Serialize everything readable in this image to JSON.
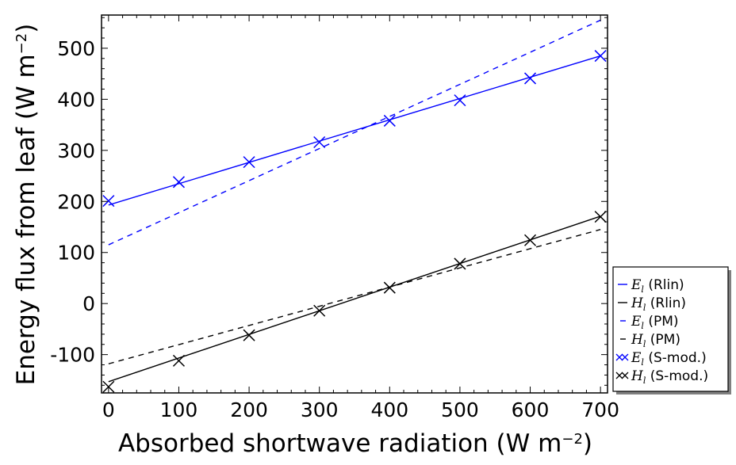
{
  "chart_data": {
    "type": "line",
    "title": "",
    "xlabel": "Absorbed shortwave radiation (W m",
    "xlabel_sup": "−2",
    "xlabel_end": ")",
    "ylabel": "Energy flux from leaf (W m",
    "ylabel_sup": "−2",
    "ylabel_end": ")",
    "xlim": [
      -10,
      710
    ],
    "ylim": [
      -175,
      565
    ],
    "x_ticks": [
      0,
      100,
      200,
      300,
      400,
      500,
      600,
      700
    ],
    "x_tick_labels": [
      "0",
      "100",
      "200",
      "300",
      "400",
      "500",
      "600",
      "700"
    ],
    "x_minor_step": 20,
    "y_ticks": [
      -100,
      0,
      100,
      200,
      300,
      400,
      500
    ],
    "y_tick_labels": [
      "-100",
      "0",
      "100",
      "200",
      "300",
      "400",
      "500"
    ],
    "y_minor_step": 20,
    "grid": false,
    "legend_position": "outside-right-bottom",
    "series": [
      {
        "name": "E_l (Rlin)",
        "symbol": "E",
        "sub": "l",
        "suffix": " (Rlin)",
        "color": "#0000ff",
        "style": "solid",
        "marker": "none",
        "x": [
          0,
          700
        ],
        "y": [
          193,
          485
        ]
      },
      {
        "name": "H_l (Rlin)",
        "symbol": "H",
        "sub": "l",
        "suffix": " (Rlin)",
        "color": "#000000",
        "style": "solid",
        "marker": "none",
        "x": [
          0,
          700
        ],
        "y": [
          -153,
          171
        ]
      },
      {
        "name": "E_l (PM)",
        "symbol": "E",
        "sub": "l",
        "suffix": " (PM)",
        "color": "#0000ff",
        "style": "dashed",
        "marker": "none",
        "x": [
          0,
          700
        ],
        "y": [
          115,
          555
        ]
      },
      {
        "name": "H_l (PM)",
        "symbol": "H",
        "sub": "l",
        "suffix": " (PM)",
        "color": "#000000",
        "style": "dashed",
        "marker": "none",
        "x": [
          0,
          700
        ],
        "y": [
          -118,
          145
        ]
      },
      {
        "name": "E_l (S-mod.)",
        "symbol": "E",
        "sub": "l",
        "suffix": " (S-mod.)",
        "color": "#0000ff",
        "style": "none",
        "marker": "x",
        "x": [
          0,
          100,
          200,
          300,
          400,
          500,
          600,
          700
        ],
        "y": [
          201,
          238,
          277,
          316,
          358,
          398,
          441,
          485
        ]
      },
      {
        "name": "H_l (S-mod.)",
        "symbol": "H",
        "sub": "l",
        "suffix": " (S-mod.)",
        "color": "#000000",
        "style": "none",
        "marker": "x",
        "x": [
          0,
          100,
          200,
          300,
          400,
          500,
          600,
          700
        ],
        "y": [
          -163,
          -112,
          -62,
          -14,
          31,
          78,
          124,
          170
        ]
      }
    ]
  }
}
